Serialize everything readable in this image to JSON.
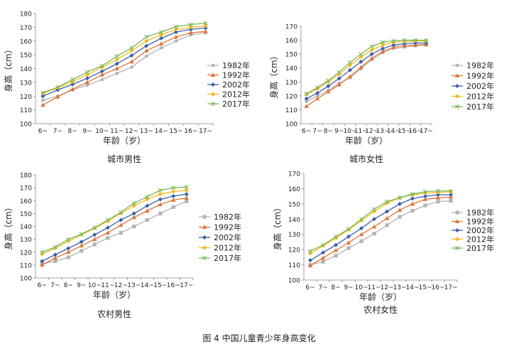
{
  "figure_caption": "图 4   中国儿童青少年身高变化",
  "chart_data": [
    {
      "type": "line",
      "title": "城市男性",
      "xlabel": "年龄（岁）",
      "ylabel": "身高（cm）",
      "ylim": [
        100,
        180
      ],
      "ytick_step": 10,
      "legend_position": "right",
      "grid": false,
      "categories": [
        "6~",
        "7~",
        "8~",
        "9~",
        "10~",
        "11~",
        "12~",
        "13~",
        "14~",
        "15~",
        "16~",
        "17~"
      ],
      "series": [
        {
          "name": "1982年",
          "color": "#b4b4b4",
          "marker": "circle",
          "values": [
            117,
            120,
            124.5,
            128,
            132,
            136.5,
            141,
            149,
            155,
            160,
            164.5,
            166
          ]
        },
        {
          "name": "1992年",
          "color": "#e0733a",
          "marker": "triangle",
          "values": [
            113.5,
            119.5,
            125,
            130,
            135.5,
            140,
            145,
            153,
            158,
            163,
            166,
            167
          ]
        },
        {
          "name": "2002年",
          "color": "#3d5fa8",
          "marker": "diamond",
          "values": [
            120,
            124.5,
            128.5,
            133,
            138,
            143.5,
            149.5,
            156.5,
            162,
            166.5,
            168.5,
            169.5
          ]
        },
        {
          "name": "2012年",
          "color": "#f2bb1d",
          "marker": "circle",
          "values": [
            122,
            126,
            130.5,
            135.5,
            141,
            146.5,
            153,
            160,
            164.5,
            168.5,
            170,
            171
          ]
        },
        {
          "name": "2017年",
          "color": "#79b85b",
          "marker": "x",
          "values": [
            122.5,
            126.5,
            132,
            137.5,
            142,
            149,
            155,
            163,
            166.5,
            170.5,
            172,
            173
          ]
        }
      ]
    },
    {
      "type": "line",
      "title": "城市女性",
      "xlabel": "年龄（岁）",
      "ylabel": "身高（cm）",
      "ylim": [
        100,
        170
      ],
      "ytick_step": 10,
      "legend_position": "right",
      "grid": false,
      "categories": [
        "6~",
        "7~",
        "8~",
        "9~",
        "10~",
        "11~",
        "12~",
        "13~",
        "14~",
        "15~",
        "16~",
        "17~"
      ],
      "series": [
        {
          "name": "1982年",
          "color": "#b4b4b4",
          "marker": "circle",
          "values": [
            116,
            120,
            124,
            129,
            133,
            139.5,
            146,
            151,
            154,
            155,
            156,
            156.5
          ]
        },
        {
          "name": "1992年",
          "color": "#e0733a",
          "marker": "triangle",
          "values": [
            112.5,
            118,
            123,
            128,
            134,
            140.5,
            147,
            152,
            155,
            156,
            156.5,
            157
          ]
        },
        {
          "name": "2002年",
          "color": "#3d5fa8",
          "marker": "diamond",
          "values": [
            118,
            122,
            127,
            132.5,
            138.5,
            144.5,
            150,
            154,
            156.5,
            157.5,
            158,
            158
          ]
        },
        {
          "name": "2012年",
          "color": "#f2bb1d",
          "marker": "circle",
          "values": [
            121,
            125,
            130,
            135.5,
            142,
            148,
            153,
            156.5,
            158.5,
            159,
            159.5,
            159.5
          ]
        },
        {
          "name": "2017年",
          "color": "#79b85b",
          "marker": "x",
          "values": [
            121.5,
            126,
            131,
            137,
            144,
            150,
            155.5,
            158.5,
            159.5,
            160,
            160,
            160
          ]
        }
      ]
    },
    {
      "type": "line",
      "title": "农村男性",
      "xlabel": "年龄（岁）",
      "ylabel": "身高（cm）",
      "ylim": [
        100,
        180
      ],
      "ytick_step": 10,
      "legend_position": "right",
      "grid": false,
      "categories": [
        "6~",
        "7~",
        "8~",
        "9~",
        "10~",
        "11~",
        "12~",
        "13~",
        "14~",
        "15~",
        "16~",
        "17~"
      ],
      "series": [
        {
          "name": "1982年",
          "color": "#b4b4b4",
          "marker": "square",
          "values": [
            111,
            113,
            116,
            121,
            126,
            131,
            135,
            140,
            145,
            150,
            155,
            159.5
          ]
        },
        {
          "name": "1992年",
          "color": "#e0733a",
          "marker": "triangle",
          "values": [
            110,
            115.5,
            120,
            125,
            130,
            135,
            141,
            147,
            152,
            157,
            160.5,
            162
          ]
        },
        {
          "name": "2002年",
          "color": "#3d5fa8",
          "marker": "diamond",
          "values": [
            113,
            118,
            123,
            128,
            133.5,
            139,
            145,
            150,
            156,
            161,
            163.5,
            165
          ]
        },
        {
          "name": "2012年",
          "color": "#f2bb1d",
          "marker": "circle",
          "values": [
            118.5,
            123,
            128.5,
            133.5,
            138.5,
            144,
            150,
            156,
            161,
            165,
            167,
            168
          ]
        },
        {
          "name": "2017年",
          "color": "#79b85b",
          "marker": "x",
          "values": [
            120,
            124,
            130,
            134,
            139,
            145,
            151,
            158,
            163,
            168,
            170,
            170.5
          ]
        }
      ]
    },
    {
      "type": "line",
      "title": "农村女性",
      "xlabel": "年龄（岁）",
      "ylabel": "身高（cm）",
      "ylim": [
        100,
        170
      ],
      "ytick_step": 10,
      "legend_position": "right",
      "grid": false,
      "categories": [
        "6~",
        "7~",
        "8~",
        "9~",
        "10~",
        "11~",
        "12~",
        "13~",
        "14~",
        "15~",
        "16~",
        "17~"
      ],
      "series": [
        {
          "name": "1982年",
          "color": "#b4b4b4",
          "marker": "square",
          "values": [
            110,
            112,
            116,
            121,
            125.5,
            130.5,
            136,
            141.5,
            145.5,
            149,
            151.5,
            152
          ]
        },
        {
          "name": "1992年",
          "color": "#e0733a",
          "marker": "triangle",
          "values": [
            109.5,
            114.5,
            119.5,
            124.5,
            130,
            135,
            140.5,
            146,
            150,
            153,
            154,
            154.5
          ]
        },
        {
          "name": "2002年",
          "color": "#3d5fa8",
          "marker": "diamond",
          "values": [
            113,
            118,
            123,
            128.5,
            134,
            140,
            145,
            150,
            153.5,
            155,
            156,
            156
          ]
        },
        {
          "name": "2012年",
          "color": "#f2bb1d",
          "marker": "circle",
          "values": [
            117.5,
            122.5,
            127.5,
            133,
            139,
            145,
            150.5,
            154,
            156,
            157,
            157.5,
            158
          ]
        },
        {
          "name": "2017年",
          "color": "#79b85b",
          "marker": "x",
          "values": [
            119,
            123,
            128.5,
            133.5,
            140,
            146.5,
            151.5,
            154,
            156.5,
            158,
            158.5,
            158.5
          ]
        }
      ]
    }
  ]
}
